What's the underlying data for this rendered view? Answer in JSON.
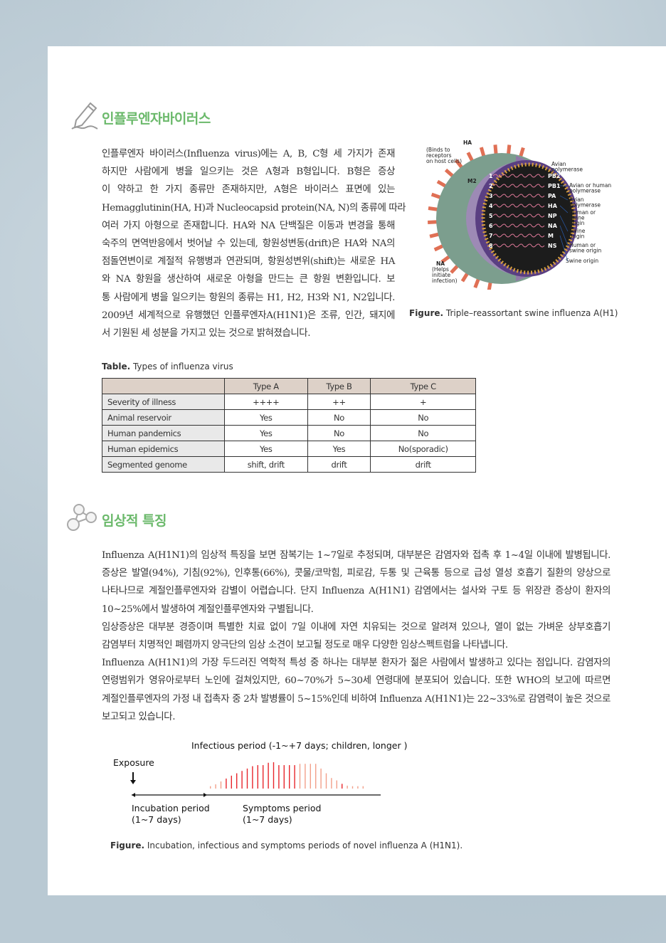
{
  "section1": {
    "title": "인플루엔자바이러스",
    "icon": "pencil-icon",
    "lines": [
      "인플루엔자 바이러스(Influenza virus)에는 A, B, C형 세 가지가 존재",
      "하지만 사람에게 병을 일으키는 것은 A형과 B형입니다. B형은 증상",
      "이 약하고 한 가지 종류만 존재하지만, A형은 바이러스 표면에 있는",
      "Hemagglutinin(HA, H)과 Nucleocapsid protein(NA, N)의 종류에 따라",
      "여러 가지 아형으로 존재합니다. HA와 NA 단백질은 이동과 변경을 통해",
      "숙주의 면역반응에서 벗어날 수 있는데, 항원성변동(drift)은 HA와 NA의",
      "점돌연변이로 계절적 유행병과 연관되며, 항원성변위(shift)는 새로운 HA",
      "와 NA 항원을 생산하여 새로운 아형을 만드는 큰 항원 변환입니다. 보",
      "통 사람에게 병을 일으키는 항원의 종류는 H1, H2, H3와 N1, N2입니다.",
      "2009년 세계적으로 유행했던 인플루엔자A(H1N1)은 조류, 인간, 돼지에",
      "서 기원된 세 성분을 가지고 있는 것으로 밝혀졌습니다."
    ]
  },
  "virus_figure": {
    "labels": {
      "ha": "HA",
      "ha_note": [
        "(Binds to",
        "receptors",
        "on host cells)"
      ],
      "m2": "M2",
      "na": "NA",
      "na_note": [
        "(Helps",
        "initiate",
        "infection)"
      ]
    },
    "segments": [
      {
        "num": "1",
        "name": "PB2"
      },
      {
        "num": "2",
        "name": "PB1"
      },
      {
        "num": "3",
        "name": "PA"
      },
      {
        "num": "4",
        "name": "HA"
      },
      {
        "num": "5",
        "name": "NP"
      },
      {
        "num": "6",
        "name": "NA"
      },
      {
        "num": "7",
        "name": "M"
      },
      {
        "num": "8",
        "name": "NS"
      }
    ],
    "origins": [
      [
        "Avian",
        "polymerase"
      ],
      [
        "Avian or human",
        "polymerase"
      ],
      [
        "Avian",
        "polymerase"
      ],
      [
        "Human or",
        "swine",
        "origin"
      ],
      [
        "Swine",
        "origin"
      ],
      [
        "Human or",
        "swine origin"
      ],
      [
        "Swine origin"
      ]
    ],
    "caption_prefix": "Figure.",
    "caption": " Triple–reassortant swine influenza A(H1)"
  },
  "table": {
    "caption_prefix": "Table.",
    "caption": " Types of influenza virus",
    "headers": [
      "",
      "Type A",
      "Type B",
      "Type C"
    ],
    "rows": [
      [
        "Severity of illness",
        "++++",
        "++",
        "+"
      ],
      [
        "Animal reservoir",
        "Yes",
        "No",
        "No"
      ],
      [
        "Human pandemics",
        "Yes",
        "No",
        "No"
      ],
      [
        "Human epidemics",
        "Yes",
        "Yes",
        "No(sporadic)"
      ],
      [
        "Segmented genome",
        "shift, drift",
        "drift",
        "drift"
      ]
    ]
  },
  "section2": {
    "title": "임상적 특징",
    "icon": "molecule-icon",
    "lines": [
      {
        "t": "Influenza A(H1N1)의 임상적 특징을 보면 잠복기는 1~7일로 추정되며, 대부분은 감염자와 접촉 후 1~4일 이내에 발병됩니다.",
        "j": true
      },
      {
        "t": "증상은 발열(94%), 기침(92%), 인후통(66%), 콧물/코막힘, 피로감, 두통 및 근육통 등으로 급성 열성 호흡기 질환의 양상으로",
        "j": true
      },
      {
        "t": "나타나므로 계절인플루엔자와 감별이 어렵습니다. 단지 Influenza A(H1N1) 감염에서는 설사와 구토 등 위장관 증상이 환자의",
        "j": true
      },
      {
        "t": "10~25%에서 발생하여 계절인플루엔자와 구별됩니다.",
        "j": false
      },
      {
        "t": "임상증상은 대부분 경증이며 특별한 치료 없이 7일 이내에 자연 치유되는 것으로 알려져 있으나, 열이 없는 가벼운 상부호흡기",
        "j": true
      },
      {
        "t": "감염부터 치명적인 폐렴까지 양극단의 임상 소견이 보고될 정도로 매우 다양한 임상스펙트럼을 나타냅니다.",
        "j": false
      },
      {
        "t": "Influenza A(H1N1)의 가장 두드러진 역학적 특성 중 하나는 대부분 환자가 젊은 사람에서 발생하고 있다는 점입니다. 감염자의",
        "j": true
      },
      {
        "t": "연령범위가 영유아로부터 노인에 걸쳐있지만, 60~70%가 5~30세 연령대에 분포되어 있습니다. 또한 WHO의 보고에 따르면",
        "j": true
      },
      {
        "t": "계절인플루엔자의 가정 내 접촉자 중 2차 발병률이 5~15%인데 비하여 Influenza A(H1N1)는 22~33%로 감염력이 높은 것으로",
        "j": true
      },
      {
        "t": "보고되고 있습니다.",
        "j": false
      }
    ]
  },
  "timeline_figure": {
    "infectious_label": "Infectious period (-1~+7 days; children, longer )",
    "exposure_label": "Exposure",
    "incubation_label": [
      "Incubation period",
      "(1~7 days)"
    ],
    "symptoms_label": [
      "Symptoms period",
      "(1~7 days)"
    ],
    "infectiousness_levels": [
      0.09,
      0.16,
      0.27,
      0.38,
      0.49,
      0.58,
      0.67,
      0.76,
      0.85,
      0.89,
      0.89,
      0.98,
      1.0,
      0.89,
      0.89,
      0.89,
      0.89,
      0.94,
      0.94,
      0.94,
      0.94,
      0.76,
      0.58,
      0.4,
      0.31,
      0.18,
      0.11,
      0.09,
      0.09,
      0.09
    ],
    "colors": {
      "light": "#f2a08a",
      "strong": "#e8262c"
    },
    "caption_prefix": "Figure.",
    "caption": " Incubation, infectious and symptoms periods of novel influenza A (H1N1)."
  },
  "colors": {
    "heading": "#6bb96b",
    "table_header": "#ddd1c8",
    "table_rowhead": "#e9e9e9"
  }
}
